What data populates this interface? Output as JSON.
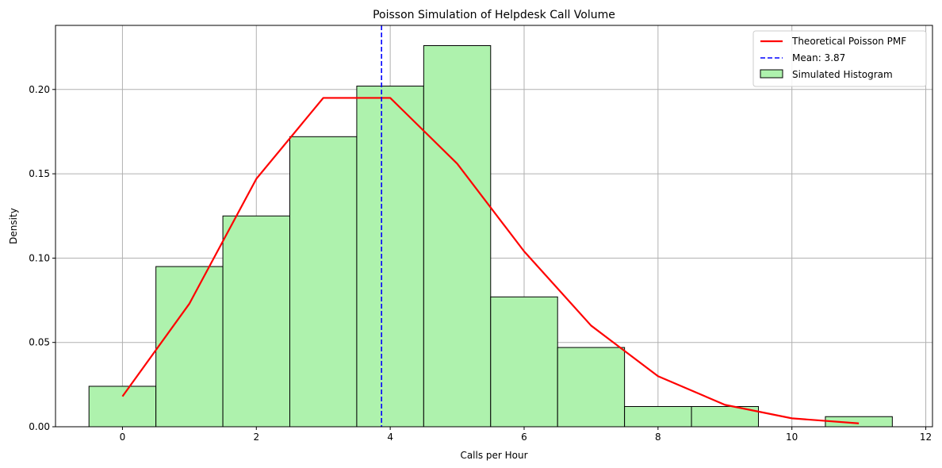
{
  "chart_data": {
    "type": "bar",
    "title": "Poisson Simulation of Helpdesk Call Volume",
    "xlabel": "Calls per Hour",
    "ylabel": "Density",
    "xlim": [
      -1.0,
      12.1
    ],
    "ylim": [
      0.0,
      0.238
    ],
    "xticks": [
      0,
      2,
      4,
      6,
      8,
      10,
      12
    ],
    "yticks": [
      0.0,
      0.05,
      0.1,
      0.15,
      0.2
    ],
    "xtick_labels": [
      "0",
      "2",
      "4",
      "6",
      "8",
      "10",
      "12"
    ],
    "ytick_labels": [
      "0.00",
      "0.05",
      "0.10",
      "0.15",
      "0.20"
    ],
    "grid": true,
    "legend_position": "top-right",
    "histogram": {
      "name": "Simulated Histogram",
      "color": "#aef2ad",
      "edge_color": "#000000",
      "bin_width": 1.0,
      "bin_centers": [
        0,
        1,
        2,
        3,
        4,
        5,
        6,
        7,
        8,
        9,
        10,
        11
      ],
      "values": [
        0.024,
        0.095,
        0.125,
        0.172,
        0.202,
        0.226,
        0.077,
        0.047,
        0.012,
        0.012,
        0.0,
        0.006
      ]
    },
    "pmf_line": {
      "name": "Theoretical Poisson PMF",
      "color": "#ff0000",
      "x": [
        0,
        1,
        2,
        3,
        4,
        5,
        6,
        7,
        8,
        9,
        10,
        11
      ],
      "y": [
        0.018,
        0.073,
        0.147,
        0.195,
        0.195,
        0.156,
        0.104,
        0.06,
        0.03,
        0.013,
        0.005,
        0.002
      ]
    },
    "mean_line": {
      "name": "Mean: 3.87",
      "color": "#0000ff",
      "x": 3.87
    }
  }
}
